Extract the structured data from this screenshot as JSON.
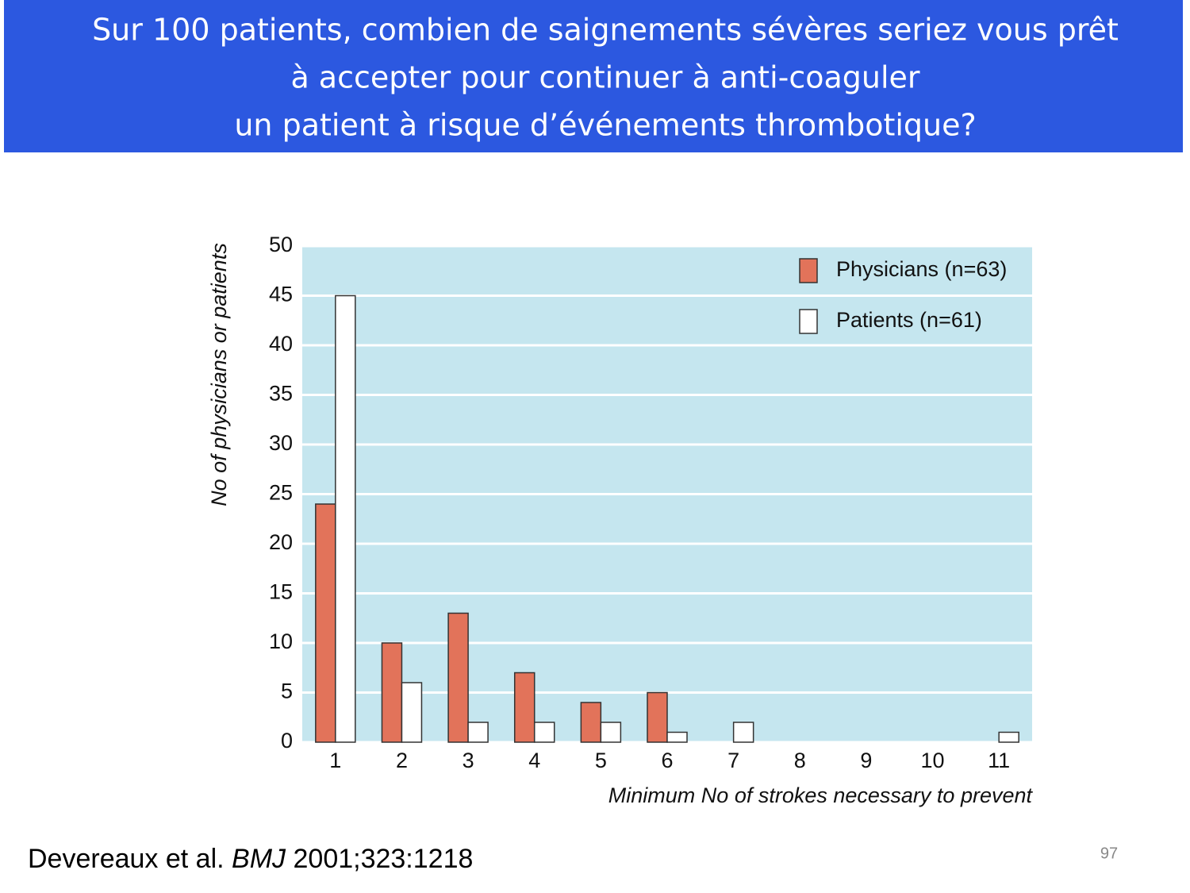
{
  "slide": {
    "title": [
      "Sur 100 patients, combien de saignements sévères seriez vous prêt",
      "à accepter pour continuer à anti-coaguler",
      "un patient à risque d’événements thrombotique?"
    ],
    "citation": {
      "authors": "Devereaux et al.",
      "journal": "BMJ",
      "reference": "2001;323:1218"
    },
    "page_number": 97
  },
  "chart_data": {
    "type": "bar",
    "x_label": "Minimum No of strokes necessary to prevent",
    "y_label": "No of physicians or patients",
    "categories": [
      "1",
      "2",
      "3",
      "4",
      "5",
      "6",
      "7",
      "8",
      "9",
      "10",
      "11"
    ],
    "series": [
      {
        "name": "Physicians (n=63)",
        "color": "#e2735a",
        "values": [
          24,
          10,
          13,
          7,
          4,
          5,
          0,
          0,
          0,
          0,
          0
        ]
      },
      {
        "name": "Patients (n=61)",
        "color": "#ffffff",
        "values": [
          45,
          6,
          2,
          2,
          2,
          1,
          2,
          0,
          0,
          0,
          1
        ]
      }
    ],
    "ylim": [
      0,
      50
    ],
    "yticks": [
      0,
      5,
      10,
      15,
      20,
      25,
      30,
      35,
      40,
      45,
      50
    ],
    "grid": true,
    "legend": "upper right",
    "background": "#c5e6ef"
  }
}
